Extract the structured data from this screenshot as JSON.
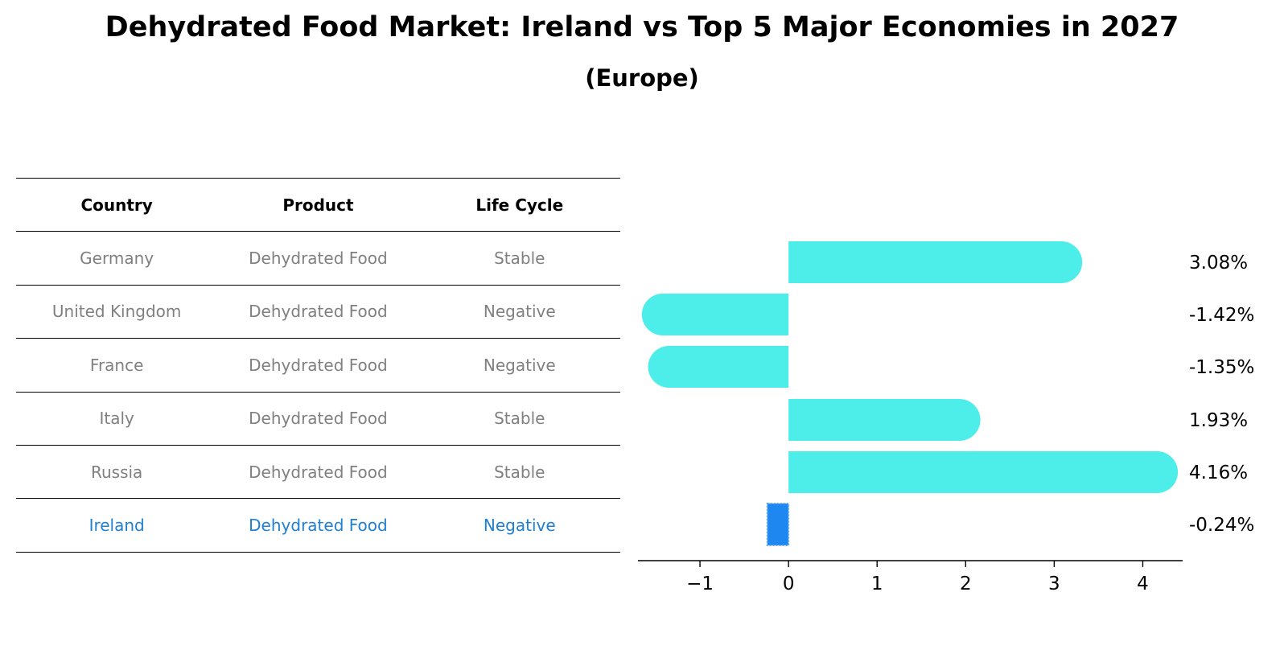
{
  "title": "Dehydrated Food Market: Ireland vs Top 5 Major Economies in 2027",
  "subtitle": "(Europe)",
  "table": {
    "headers": [
      "Country",
      "Product",
      "Life Cycle"
    ],
    "rows": [
      {
        "country": "Germany",
        "product": "Dehydrated Food",
        "life_cycle": "Stable"
      },
      {
        "country": "United Kingdom",
        "product": "Dehydrated Food",
        "life_cycle": "Negative"
      },
      {
        "country": "France",
        "product": "Dehydrated Food",
        "life_cycle": "Negative"
      },
      {
        "country": "Italy",
        "product": "Dehydrated Food",
        "life_cycle": "Stable"
      },
      {
        "country": "Russia",
        "product": "Dehydrated Food",
        "life_cycle": "Stable"
      },
      {
        "country": "Ireland",
        "product": "Dehydrated Food",
        "life_cycle": "Negative"
      }
    ]
  },
  "chart_data": {
    "type": "bar",
    "orientation": "horizontal",
    "categories": [
      "Germany",
      "United Kingdom",
      "France",
      "Italy",
      "Russia",
      "Ireland"
    ],
    "values": [
      3.08,
      -1.42,
      -1.35,
      1.93,
      4.16,
      -0.24
    ],
    "value_labels": [
      "3.08%",
      "-1.42%",
      "-1.35%",
      "1.93%",
      "4.16%",
      "-0.24%"
    ],
    "xlim": [
      -1.7,
      4.45
    ],
    "xticks": [
      -1,
      0,
      1,
      2,
      3,
      4
    ],
    "xtick_labels": [
      "−1",
      "0",
      "1",
      "2",
      "3",
      "4"
    ],
    "highlight_index": 5,
    "colors": {
      "bar": "#4deeea",
      "highlight": "#1f88f0",
      "highlight_edge": "#5aa7f5"
    },
    "grid": false
  }
}
